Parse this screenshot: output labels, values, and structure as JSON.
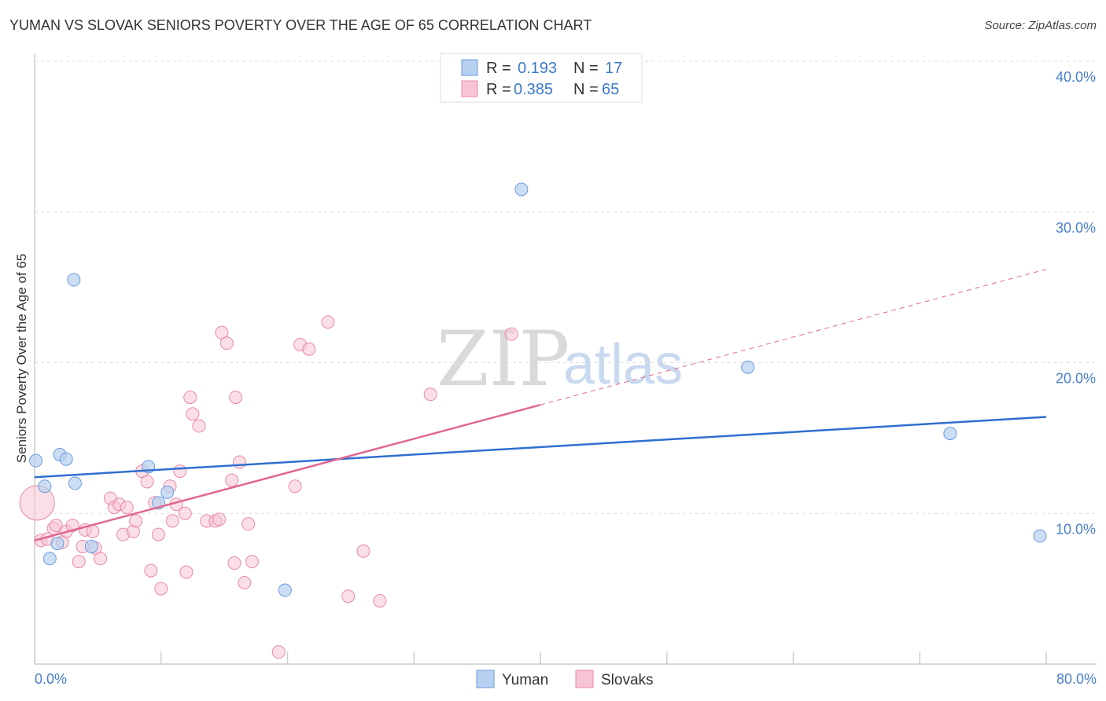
{
  "title": "YUMAN VS SLOVAK SENIORS POVERTY OVER THE AGE OF 65 CORRELATION CHART",
  "source": "Source: ZipAtlas.com",
  "watermark": {
    "zip": "ZIP",
    "atlas": "atlas"
  },
  "chart_data": {
    "type": "scatter",
    "title": "YUMAN VS SLOVAK SENIORS POVERTY OVER THE AGE OF 65 CORRELATION CHART",
    "xlabel": "",
    "ylabel": "Seniors Poverty Over the Age of 65",
    "xlim": [
      0,
      80
    ],
    "ylim": [
      0,
      40
    ],
    "x_tick_labels": [
      "0.0%",
      "80.0%"
    ],
    "y_ticks": [
      10,
      20,
      30,
      40
    ],
    "y_tick_labels": [
      "10.0%",
      "20.0%",
      "30.0%",
      "40.0%"
    ],
    "grid": true,
    "legend": [
      {
        "name": "Yuman",
        "r_label": "R =",
        "r": "0.193",
        "n_label": "N =",
        "n": "17",
        "fill": "#b7d0f0",
        "stroke": "#6b9be0"
      },
      {
        "name": "Slovaks",
        "r_label": "R =",
        "r": "0.385",
        "n_label": "N =",
        "n": "65",
        "fill": "#f7c4d4",
        "stroke": "#e88aa8"
      }
    ],
    "series": [
      {
        "name": "Yuman",
        "color": "#4a86d8",
        "line_color": "#2f6fd0",
        "trend": {
          "x0": 0,
          "y0": 12.4,
          "x1": 80,
          "y1": 16.4
        },
        "points": [
          [
            0.1,
            13.5
          ],
          [
            0.8,
            11.8
          ],
          [
            1.2,
            7.0
          ],
          [
            1.8,
            8.0
          ],
          [
            2.0,
            13.9
          ],
          [
            2.5,
            13.6
          ],
          [
            3.2,
            12.0
          ],
          [
            3.1,
            25.5
          ],
          [
            4.5,
            7.8
          ],
          [
            9.0,
            13.1
          ],
          [
            9.8,
            10.7
          ],
          [
            10.5,
            11.4
          ],
          [
            19.8,
            4.9
          ],
          [
            38.5,
            31.5
          ],
          [
            56.4,
            19.7
          ],
          [
            72.4,
            15.3
          ],
          [
            79.5,
            8.5
          ]
        ]
      },
      {
        "name": "Slovaks",
        "color": "#f28fb0",
        "line_color": "#e06890",
        "trend": {
          "x0": 0,
          "y0": 8.2,
          "x1": 40,
          "y1": 17.2
        },
        "trend_extension": {
          "x0": 40,
          "y0": 17.2,
          "x1": 80,
          "y1": 26.2
        },
        "points": [
          [
            0.2,
            10.7
          ],
          [
            0.5,
            8.2
          ],
          [
            1.0,
            8.3
          ],
          [
            1.5,
            9.0
          ],
          [
            1.7,
            9.2
          ],
          [
            2.2,
            8.1
          ],
          [
            2.5,
            8.8
          ],
          [
            3.0,
            9.2
          ],
          [
            3.5,
            6.8
          ],
          [
            3.8,
            7.8
          ],
          [
            4.0,
            8.9
          ],
          [
            4.6,
            8.8
          ],
          [
            4.8,
            7.7
          ],
          [
            5.2,
            7.0
          ],
          [
            6.0,
            11.0
          ],
          [
            6.3,
            10.4
          ],
          [
            6.7,
            10.6
          ],
          [
            7.0,
            8.6
          ],
          [
            7.3,
            10.4
          ],
          [
            7.8,
            8.8
          ],
          [
            8.0,
            9.5
          ],
          [
            8.5,
            12.8
          ],
          [
            8.9,
            12.1
          ],
          [
            9.2,
            6.2
          ],
          [
            9.5,
            10.7
          ],
          [
            9.8,
            8.6
          ],
          [
            10.0,
            5.0
          ],
          [
            10.7,
            11.8
          ],
          [
            10.9,
            9.5
          ],
          [
            11.2,
            10.6
          ],
          [
            11.5,
            12.8
          ],
          [
            11.9,
            10.0
          ],
          [
            12.0,
            6.1
          ],
          [
            12.3,
            17.7
          ],
          [
            12.5,
            16.6
          ],
          [
            13.0,
            15.8
          ],
          [
            13.6,
            9.5
          ],
          [
            14.3,
            9.5
          ],
          [
            14.6,
            9.6
          ],
          [
            14.8,
            22.0
          ],
          [
            15.2,
            21.3
          ],
          [
            15.6,
            12.2
          ],
          [
            15.8,
            6.7
          ],
          [
            15.9,
            17.7
          ],
          [
            16.2,
            13.4
          ],
          [
            16.6,
            5.4
          ],
          [
            16.9,
            9.3
          ],
          [
            17.2,
            6.8
          ],
          [
            19.3,
            0.8
          ],
          [
            20.6,
            11.8
          ],
          [
            21.0,
            21.2
          ],
          [
            21.7,
            20.9
          ],
          [
            23.2,
            22.7
          ],
          [
            24.8,
            4.5
          ],
          [
            26.0,
            7.5
          ],
          [
            27.3,
            4.2
          ],
          [
            31.3,
            17.9
          ],
          [
            37.7,
            21.9
          ]
        ]
      }
    ]
  }
}
